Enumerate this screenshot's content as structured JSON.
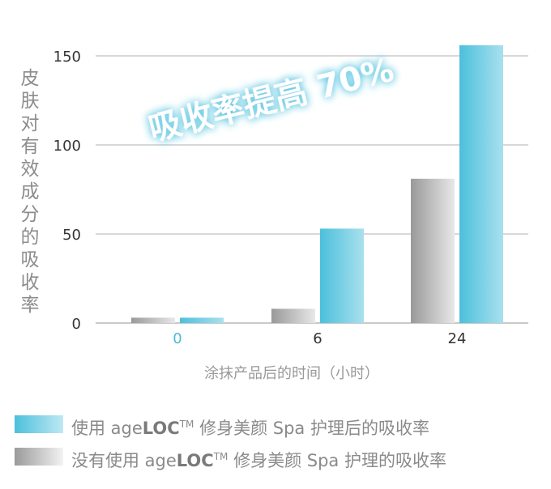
{
  "chart_data": {
    "type": "bar",
    "categories": [
      "0",
      "6",
      "24"
    ],
    "series": [
      {
        "name": "没有使用 ageLOC™ 修身美颜 Spa 护理的吸收率",
        "color": "#b4b4b4",
        "values": [
          3,
          8,
          81
        ]
      },
      {
        "name": "使用 ageLOC™ 修身美颜 Spa 护理后的吸收率",
        "color": "#57c4de",
        "values": [
          3,
          53,
          156
        ]
      }
    ],
    "ylim": [
      0,
      160
    ],
    "yticks": [
      "0",
      "50",
      "100",
      "150"
    ],
    "ylabel": "皮肤对有效成分的吸收率",
    "xlabel": "涂抹产品后的时间（小时）",
    "grid": true,
    "annotation": "吸收率提高 70%"
  },
  "legend": {
    "item1": {
      "prefix": "使用 age",
      "brand": "LOC",
      "tm": "TM",
      "suffix": " 修身美颜 Spa 护理后的吸收率"
    },
    "item2": {
      "prefix": "没有使用 age",
      "brand": "LOC",
      "tm": "TM",
      "suffix": " 修身美颜 Spa 护理的吸收率"
    }
  }
}
